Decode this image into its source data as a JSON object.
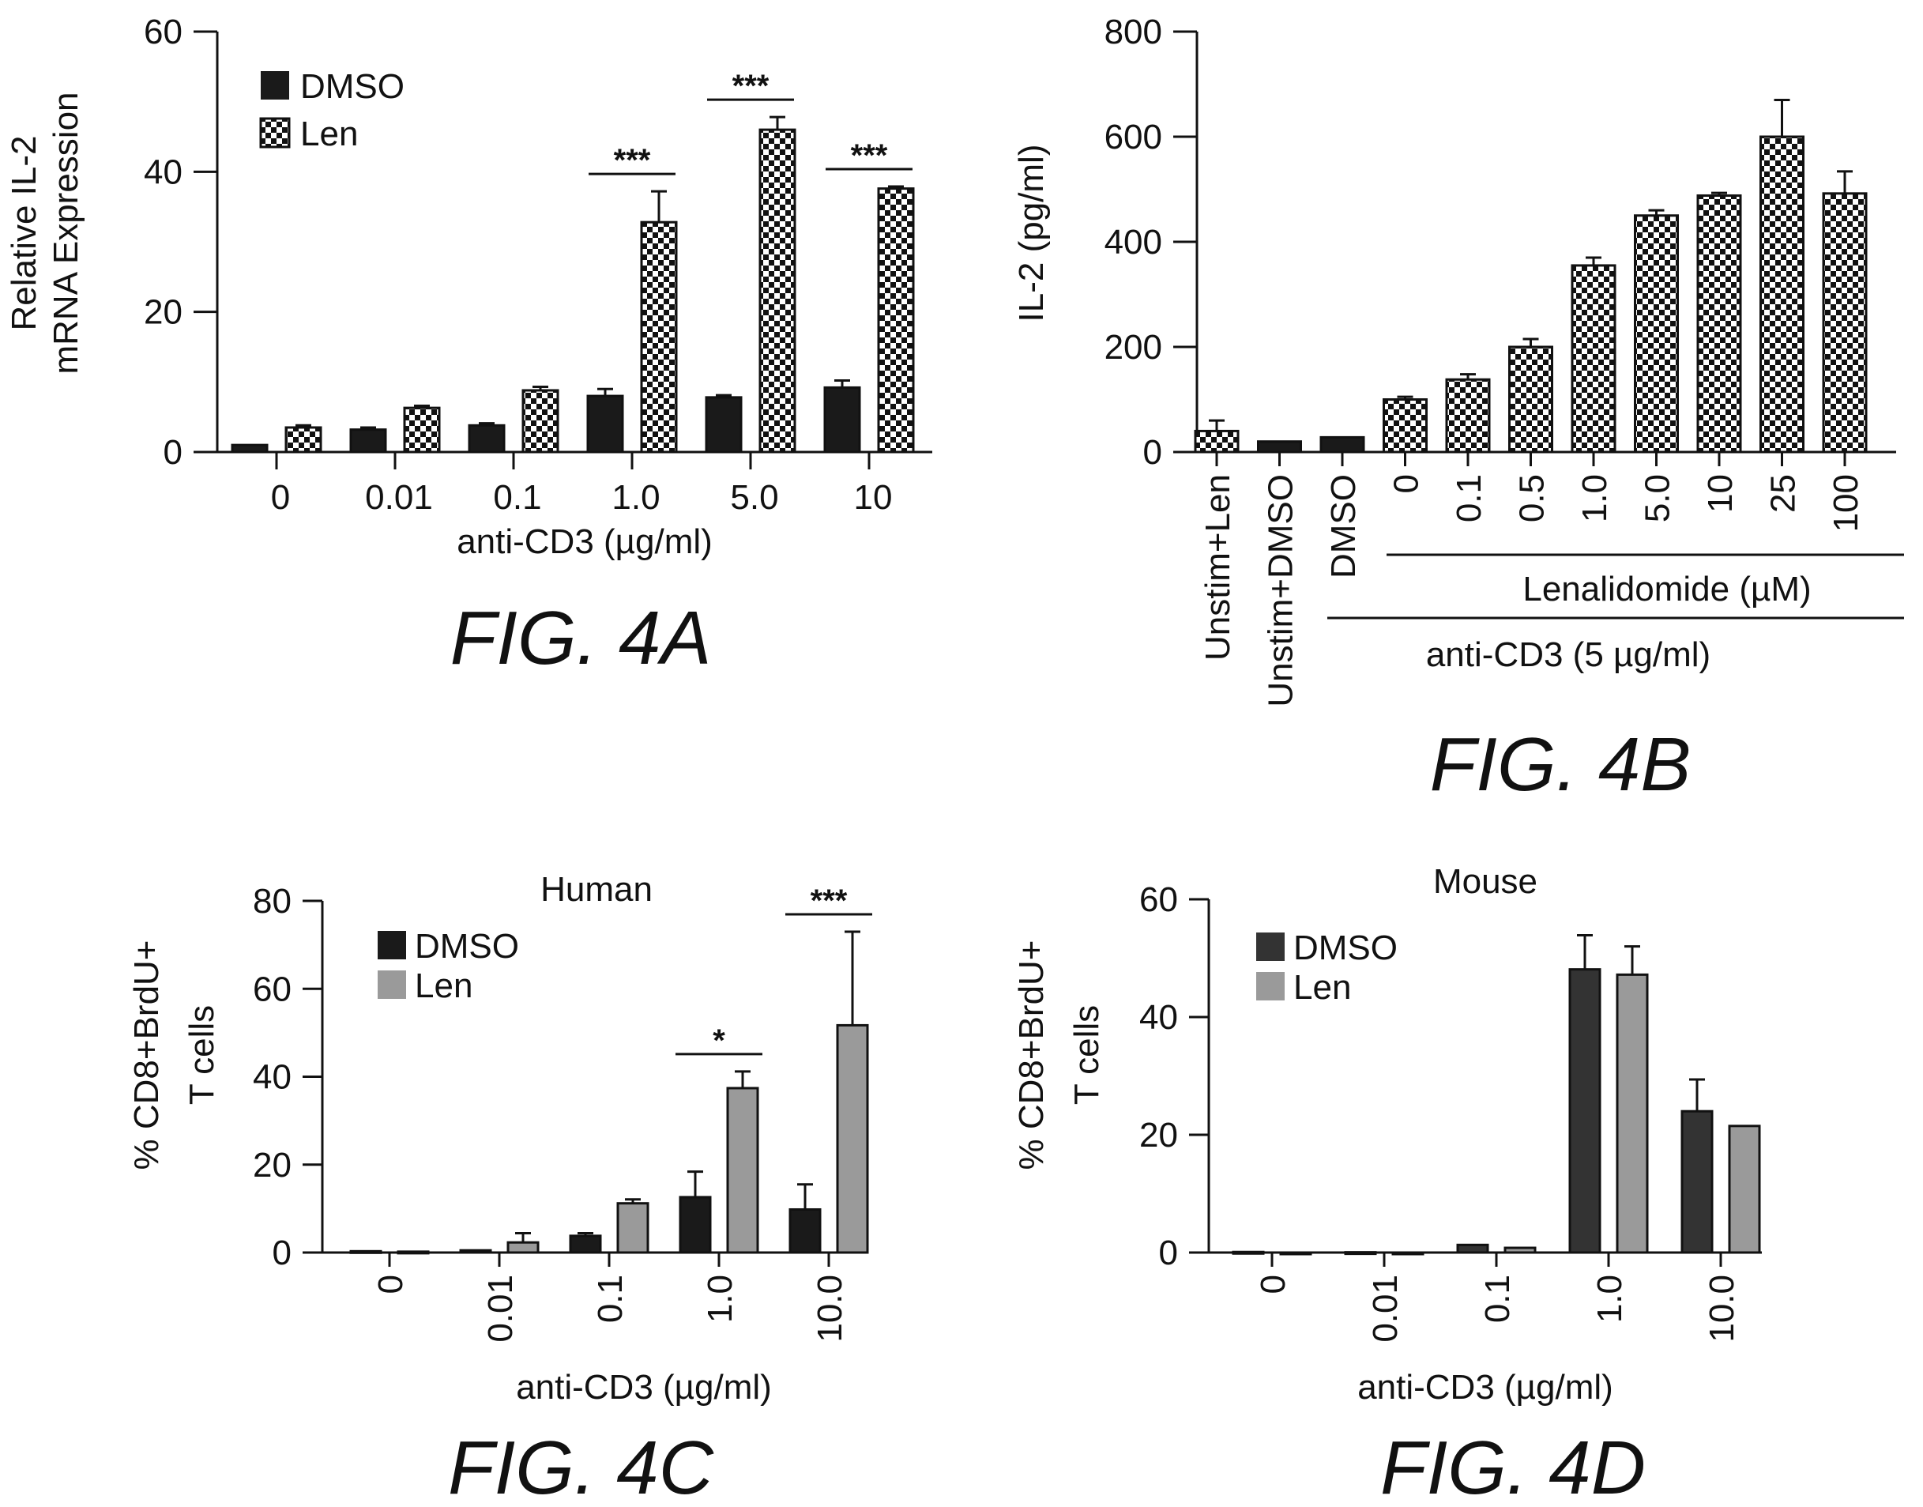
{
  "colors": {
    "dmso": "#1a1a1a",
    "dmso_dark_grey": "#333333",
    "len_grey": "#9a9a9a",
    "checker_a": "#111111",
    "checker_b": "#ffffff"
  },
  "chart_data": [
    {
      "id": "4A",
      "type": "bar",
      "figure_label": "FIG. 4A",
      "title": "",
      "ylabel_lines": [
        "Relative IL-2",
        "mRNA Expression"
      ],
      "xlabel": "anti-CD3 (µg/ml)",
      "ylim": [
        0,
        60
      ],
      "yticks": [
        "0",
        "20",
        "40",
        "60"
      ],
      "categories": [
        "0",
        "0.01",
        "0.1",
        "1.0",
        "5.0",
        "10"
      ],
      "legend": [
        "DMSO",
        "Len"
      ],
      "series": [
        {
          "name": "DMSO",
          "values": [
            1,
            3.2,
            3.8,
            8,
            7.8,
            9.2
          ],
          "errors": [
            0,
            0.3,
            0.3,
            1,
            0.3,
            1
          ]
        },
        {
          "name": "Len",
          "values": [
            3.5,
            6.3,
            8.8,
            32.8,
            46,
            37.6
          ],
          "errors": [
            0.3,
            0.3,
            0.5,
            4.4,
            1.8,
            0.3
          ]
        }
      ],
      "significance": [
        {
          "category_index": 3,
          "label": "***"
        },
        {
          "category_index": 4,
          "label": "***"
        },
        {
          "category_index": 5,
          "label": "***"
        }
      ]
    },
    {
      "id": "4B",
      "type": "bar",
      "figure_label": "FIG. 4B",
      "title": "",
      "ylabel": "IL-2 (pg/ml)",
      "ylim": [
        0,
        800
      ],
      "yticks": [
        "0",
        "200",
        "400",
        "600",
        "800"
      ],
      "categories": [
        "Unstim+Len",
        "Unstim+DMSO",
        "DMSO",
        "0",
        "0.1",
        "0.5",
        "1.0",
        "5.0",
        "10",
        "25",
        "100"
      ],
      "values": [
        40,
        20,
        28,
        100,
        138,
        200,
        355,
        450,
        488,
        600,
        492
      ],
      "errors": [
        20,
        0,
        0,
        5,
        10,
        15,
        15,
        10,
        5,
        70,
        42
      ],
      "fills": [
        "checker",
        "solid",
        "solid",
        "checker",
        "checker",
        "checker",
        "checker",
        "checker",
        "checker",
        "checker",
        "checker"
      ],
      "bracket_lenalidomide": "Lenalidomide (µM)",
      "bracket_anticd3": "anti-CD3 (5 µg/ml)"
    },
    {
      "id": "4C",
      "type": "bar",
      "figure_label": "FIG. 4C",
      "title": "Human",
      "ylabel_lines": [
        "% CD8+BrdU+",
        "T cells"
      ],
      "xlabel": "anti-CD3 (µg/ml)",
      "ylim": [
        0,
        80
      ],
      "yticks": [
        "0",
        "20",
        "40",
        "60",
        "80"
      ],
      "categories": [
        "0",
        "0.01",
        "0.1",
        "1.0",
        "10.0"
      ],
      "legend": [
        "DMSO",
        "Len"
      ],
      "series": [
        {
          "name": "DMSO",
          "values": [
            0.3,
            0.5,
            3.8,
            12.6,
            9.8
          ],
          "errors": [
            0,
            0,
            0.6,
            5.8,
            5.7
          ]
        },
        {
          "name": "Len",
          "values": [
            0.2,
            2.3,
            11.2,
            37.4,
            51.7
          ],
          "errors": [
            0,
            2.1,
            0.9,
            3.8,
            21.3
          ]
        }
      ],
      "significance": [
        {
          "category_index": 3,
          "label": "*"
        },
        {
          "category_index": 4,
          "label": "***"
        }
      ]
    },
    {
      "id": "4D",
      "type": "bar",
      "figure_label": "FIG. 4D",
      "title": "Mouse",
      "ylabel_lines": [
        "% CD8+BrdU+",
        "T cells"
      ],
      "xlabel": "anti-CD3 (µg/ml)",
      "ylim": [
        0,
        60
      ],
      "yticks": [
        "0",
        "20",
        "40",
        "60"
      ],
      "categories": [
        "0",
        "0.01",
        "0.1",
        "1.0",
        "10.0"
      ],
      "legend": [
        "DMSO",
        "Len"
      ],
      "series": [
        {
          "name": "DMSO",
          "values": [
            0.1,
            0.05,
            1.3,
            48.1,
            24
          ],
          "errors": [
            0,
            0,
            0,
            5.8,
            5.4
          ]
        },
        {
          "name": "Len",
          "values": [
            0,
            0,
            0.8,
            47.2,
            21.5
          ],
          "errors": [
            0,
            0,
            0,
            4.8,
            0
          ]
        }
      ]
    }
  ]
}
